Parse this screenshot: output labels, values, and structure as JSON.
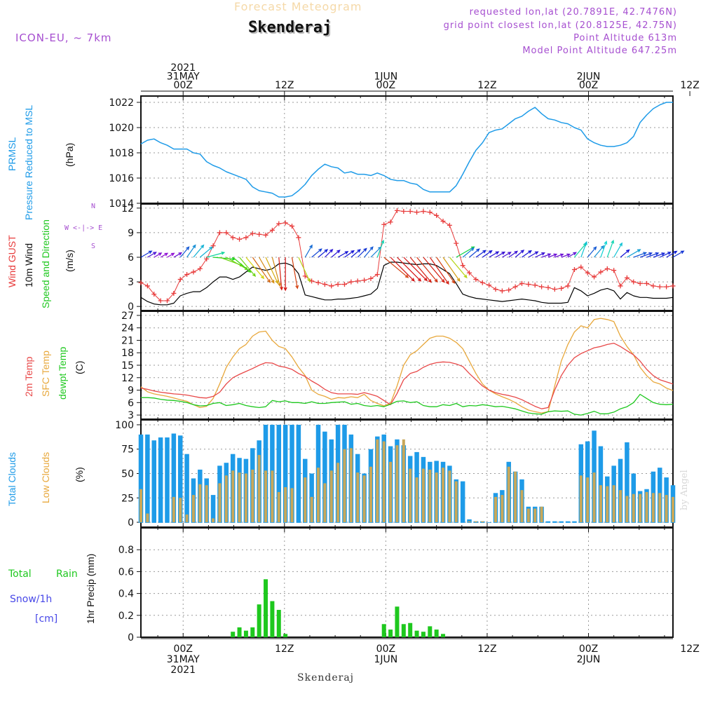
{
  "header": {
    "title": "Forecast Meteogram",
    "station": "Skenderaj",
    "model": "ICON-EU, ~ 7km",
    "requested": "requested lon,lat (20.7891E, 42.7476N)",
    "gridpoint": "grid point closest lon,lat (20.8125E, 42.75N)",
    "point_alt": "Point Altitude 613m",
    "model_alt": "Model Point Altitude 647.25m"
  },
  "time_axis": {
    "top_labels": [
      {
        "hour": 0,
        "lines": [
          "2021",
          "31MAY",
          "00Z"
        ]
      },
      {
        "hour": 12,
        "lines": [
          "12Z"
        ]
      },
      {
        "hour": 24,
        "lines": [
          "1JUN",
          "00Z"
        ]
      },
      {
        "hour": 36,
        "lines": [
          "12Z"
        ]
      },
      {
        "hour": 48,
        "lines": [
          "2JUN",
          "00Z"
        ]
      },
      {
        "hour": 60,
        "lines": [
          "12Z"
        ]
      }
    ],
    "bottom_labels": [
      {
        "hour": 0,
        "lines": [
          "00Z",
          "31MAY",
          "2021"
        ]
      },
      {
        "hour": 12,
        "lines": [
          "12Z"
        ]
      },
      {
        "hour": 24,
        "lines": [
          "00Z",
          "1JUN"
        ]
      },
      {
        "hour": 36,
        "lines": [
          "12Z"
        ]
      },
      {
        "hour": 48,
        "lines": [
          "00Z",
          "2JUN"
        ]
      },
      {
        "hour": 60,
        "lines": [
          "12Z"
        ]
      }
    ],
    "footer": "Skenderaj"
  },
  "panels": {
    "pressure": {
      "l1": "PRMSL",
      "l2": "Pressure Reduced to MSL",
      "unit": "(hPa)"
    },
    "wind": {
      "l1": "Wind GUST",
      "l2": "10m Wind",
      "l3": "Speed and Direction",
      "unit": "(m/s)",
      "compass_n": "N",
      "compass_ew": "W <-|-> E",
      "compass_s": "S"
    },
    "temp": {
      "l1": "2m Temp",
      "l2": "SFC Temp",
      "l3": "dewpt Temp",
      "unit": "(C)"
    },
    "clouds": {
      "l1": "Total Clouds",
      "l2": "Low Clouds",
      "unit": "(%)"
    },
    "precip": {
      "l1": "Total",
      "l1b": "Rain",
      "l2": "Snow/1h",
      "l3": "[cm]",
      "unit": "1hr Precip (mm)"
    }
  },
  "credit": "by Angel",
  "colors": {
    "pressure": "#1e9be8",
    "gust": "#e83c3c",
    "wind": "#000000",
    "temp2m": "#e84848",
    "sfc": "#e8a83c",
    "dewpt": "#1ec81e",
    "total_cloud": "#1e9be8",
    "low_cloud": "#c8a85a",
    "rain": "#1ec81e",
    "snow": "#4848e8",
    "label_green": "#1ec81e",
    "label_purple": "#a64fd0"
  },
  "chart_data": [
    {
      "type": "line",
      "title": "PRMSL",
      "ylabel": "(hPa)",
      "ylim": [
        1014,
        1022.5
      ],
      "yticks": [
        1014,
        1016,
        1018,
        1020,
        1022
      ],
      "x_hours_start": -5,
      "x_hours_end": 58,
      "grid": true,
      "series": [
        {
          "name": "PRMSL",
          "values": [
            1018.7,
            1019.0,
            1019.1,
            1018.8,
            1018.6,
            1018.3,
            1018.3,
            1018.3,
            1018.0,
            1017.9,
            1017.3,
            1017.0,
            1016.8,
            1016.5,
            1016.3,
            1016.1,
            1015.9,
            1015.3,
            1015.0,
            1014.9,
            1014.8,
            1014.5,
            1014.5,
            1014.6,
            1015.0,
            1015.5,
            1016.2,
            1016.7,
            1017.1,
            1016.9,
            1016.8,
            1016.4,
            1016.5,
            1016.3,
            1016.3,
            1016.2,
            1016.4,
            1016.2,
            1015.9,
            1015.8,
            1015.8,
            1015.6,
            1015.5,
            1015.1,
            1014.9,
            1014.9,
            1014.9,
            1014.9,
            1015.4,
            1016.3,
            1017.3,
            1018.2,
            1018.8,
            1019.6,
            1019.8,
            1019.9,
            1020.3,
            1020.7,
            1020.9,
            1021.3,
            1021.6,
            1021.1,
            1020.7,
            1020.6,
            1020.4,
            1020.3,
            1020.0,
            1019.8,
            1019.1,
            1018.8,
            1018.6,
            1018.5,
            1018.5,
            1018.6,
            1018.8,
            1019.3,
            1020.4,
            1021.0,
            1021.5,
            1021.8,
            1022.0,
            1022.0
          ]
        }
      ]
    },
    {
      "type": "line",
      "title": "Wind GUST / 10m Wind",
      "ylabel": "(m/s)",
      "ylim": [
        -0.5,
        12.5
      ],
      "yticks": [
        0,
        3,
        6,
        9,
        12
      ],
      "grid": true,
      "series": [
        {
          "name": "Wind GUST",
          "values": [
            2.9,
            2.5,
            1.5,
            0.7,
            0.7,
            1.6,
            3.3,
            3.9,
            4.2,
            4.6,
            5.8,
            7.4,
            9.0,
            9.0,
            8.4,
            8.2,
            8.4,
            8.9,
            8.8,
            8.7,
            9.3,
            10.1,
            10.2,
            9.8,
            8.4,
            3.7,
            3.1,
            2.9,
            2.7,
            2.5,
            2.7,
            2.7,
            3.0,
            3.1,
            3.2,
            3.4,
            3.9,
            10.0,
            10.3,
            11.7,
            11.6,
            11.6,
            11.5,
            11.6,
            11.5,
            11.1,
            10.4,
            9.9,
            7.7,
            5.0,
            4.1,
            3.3,
            2.9,
            2.6,
            2.1,
            1.9,
            2.0,
            2.4,
            2.8,
            2.7,
            2.6,
            2.4,
            2.3,
            2.1,
            2.2,
            2.5,
            4.5,
            4.8,
            4.1,
            3.6,
            4.2,
            4.6,
            4.4,
            2.5,
            3.5,
            3.0,
            2.8,
            2.8,
            2.5,
            2.4,
            2.4,
            2.5
          ]
        },
        {
          "name": "10m Wind",
          "values": [
            1.1,
            0.6,
            0.3,
            0.2,
            0.2,
            0.4,
            1.3,
            1.6,
            1.8,
            1.8,
            2.3,
            3.0,
            3.6,
            3.6,
            3.3,
            3.6,
            4.2,
            4.8,
            4.6,
            4.4,
            4.6,
            5.2,
            5.3,
            5.0,
            4.0,
            1.4,
            1.2,
            1.0,
            0.8,
            0.8,
            0.9,
            0.9,
            1.0,
            1.1,
            1.3,
            1.5,
            2.2,
            5.0,
            5.4,
            5.4,
            5.3,
            5.2,
            5.1,
            5.2,
            5.2,
            5.0,
            4.5,
            4.0,
            2.8,
            1.5,
            1.2,
            1.0,
            0.9,
            0.8,
            0.7,
            0.6,
            0.7,
            0.8,
            0.9,
            0.8,
            0.7,
            0.5,
            0.4,
            0.4,
            0.4,
            0.5,
            2.3,
            1.9,
            1.3,
            1.6,
            2.0,
            2.2,
            1.9,
            0.9,
            1.7,
            1.3,
            1.1,
            1.1,
            1.0,
            1.0,
            1.0,
            1.1
          ]
        }
      ],
      "wind_direction_deg": [
        240,
        240,
        240,
        240,
        240,
        240,
        220,
        215,
        220,
        230,
        255,
        275,
        290,
        300,
        310,
        320,
        320,
        325,
        330,
        335,
        345,
        355,
        360,
        350,
        335,
        210,
        230,
        230,
        225,
        230,
        240,
        235,
        230,
        225,
        220,
        225,
        200,
        310,
        315,
        315,
        315,
        320,
        320,
        320,
        325,
        325,
        325,
        320,
        240,
        230,
        230,
        235,
        235,
        240,
        240,
        240,
        235,
        230,
        235,
        240,
        245,
        250,
        250,
        250,
        250,
        240,
        220,
        200,
        220,
        220,
        200,
        200,
        210,
        230,
        240,
        250,
        250,
        250,
        250,
        245,
        240,
        240
      ]
    },
    {
      "type": "line",
      "title": "Temperature",
      "ylabel": "(C)",
      "ylim": [
        2,
        28
      ],
      "yticks": [
        3,
        6,
        9,
        12,
        15,
        18,
        21,
        24,
        27
      ],
      "grid": true,
      "series": [
        {
          "name": "2m Temp",
          "values": [
            9.5,
            9.2,
            8.8,
            8.5,
            8.3,
            8.1,
            8.0,
            7.8,
            7.5,
            7.2,
            7.1,
            7.5,
            8.5,
            10.5,
            12.0,
            12.8,
            13.5,
            14.2,
            15.0,
            15.6,
            15.5,
            14.8,
            14.5,
            14.0,
            13.0,
            12.3,
            11.2,
            10.3,
            9.2,
            8.4,
            8.1,
            8.1,
            8.1,
            8.0,
            8.4,
            8.0,
            7.5,
            6.5,
            5.5,
            8.2,
            11.5,
            13.0,
            13.5,
            14.5,
            15.2,
            15.6,
            15.8,
            15.7,
            15.3,
            14.7,
            13.0,
            11.5,
            10.0,
            9.0,
            8.4,
            8.0,
            7.7,
            7.3,
            6.7,
            5.9,
            5.1,
            4.5,
            4.8,
            9.0,
            12.5,
            15.0,
            16.8,
            17.8,
            18.5,
            19.2,
            19.5,
            20.0,
            20.3,
            19.5,
            18.5,
            17.5,
            16.0,
            14.0,
            12.5,
            11.5,
            11.0,
            10.5
          ]
        },
        {
          "name": "SFC Temp",
          "values": [
            9.8,
            8.6,
            8.1,
            7.8,
            7.5,
            7.1,
            6.7,
            6.3,
            5.5,
            4.8,
            5.1,
            7.0,
            10.5,
            14.5,
            17.0,
            19.0,
            20.0,
            22.0,
            23.0,
            23.2,
            21.0,
            19.5,
            19.0,
            17.0,
            14.5,
            12.5,
            9.0,
            8.0,
            7.5,
            6.8,
            7.2,
            7.1,
            7.4,
            7.2,
            8.0,
            6.5,
            5.8,
            5.2,
            5.8,
            10.0,
            15.0,
            17.5,
            18.5,
            20.0,
            21.5,
            22.0,
            22.0,
            21.5,
            20.5,
            19.0,
            16.0,
            13.0,
            10.5,
            9.0,
            8.1,
            7.4,
            6.8,
            6.0,
            5.0,
            4.2,
            3.8,
            3.5,
            3.8,
            10.0,
            16.0,
            20.0,
            23.0,
            24.5,
            24.0,
            26.0,
            26.3,
            26.0,
            25.5,
            22.0,
            19.5,
            17.5,
            14.5,
            12.5,
            11.0,
            10.5,
            9.5,
            8.9
          ]
        },
        {
          "name": "dewpt Temp",
          "values": [
            7.2,
            7.2,
            7.1,
            6.8,
            6.6,
            6.5,
            6.3,
            6.0,
            5.5,
            5.2,
            5.3,
            5.8,
            6.0,
            5.3,
            5.5,
            5.8,
            5.3,
            5.0,
            4.8,
            5.0,
            6.5,
            6.2,
            6.4,
            6.0,
            6.0,
            5.8,
            6.2,
            5.8,
            5.8,
            6.0,
            6.1,
            6.2,
            5.6,
            5.8,
            5.3,
            5.1,
            5.3,
            5.0,
            5.6,
            6.3,
            6.4,
            6.0,
            6.2,
            5.3,
            5.0,
            5.0,
            5.5,
            5.3,
            5.8,
            5.0,
            5.3,
            5.2,
            5.5,
            5.3,
            5.0,
            5.1,
            4.8,
            4.5,
            4.0,
            3.5,
            3.3,
            3.2,
            3.8,
            4.0,
            3.9,
            4.0,
            3.2,
            3.0,
            3.4,
            3.9,
            3.3,
            3.3,
            3.7,
            4.5,
            5.0,
            6.0,
            8.0,
            7.0,
            6.0,
            5.6,
            5.5,
            5.6
          ]
        }
      ]
    },
    {
      "type": "bar",
      "title": "Clouds",
      "ylabel": "(%)",
      "ylim": [
        -5,
        105
      ],
      "yticks": [
        0,
        25,
        50,
        75,
        100
      ],
      "grid": true,
      "series": [
        {
          "name": "Total Clouds",
          "values": [
            90,
            90,
            84,
            87,
            87,
            91,
            89,
            70,
            45,
            54,
            45,
            28,
            58,
            61,
            70,
            66,
            65,
            76,
            84,
            100,
            100,
            100,
            100,
            100,
            100,
            65,
            50,
            100,
            93,
            85,
            100,
            100,
            90,
            70,
            50,
            75,
            88,
            90,
            78,
            85,
            79,
            68,
            72,
            67,
            62,
            63,
            62,
            58,
            44,
            42,
            3,
            1,
            1,
            0,
            30,
            33,
            62,
            52,
            44,
            16,
            16,
            16,
            1,
            1,
            1,
            1,
            1,
            80,
            83,
            94,
            78,
            47,
            58,
            65,
            82,
            50,
            32,
            34,
            52,
            56,
            46,
            38
          ]
        },
        {
          "name": "Low Clouds",
          "values": [
            34,
            9,
            0,
            0,
            0,
            26,
            25,
            8,
            28,
            39,
            38,
            4,
            40,
            48,
            53,
            51,
            50,
            54,
            69,
            53,
            53,
            31,
            36,
            35,
            0,
            46,
            26,
            56,
            40,
            53,
            61,
            75,
            76,
            51,
            48,
            57,
            85,
            83,
            62,
            79,
            85,
            55,
            46,
            55,
            54,
            51,
            56,
            53,
            42,
            0,
            1,
            1,
            1,
            0,
            26,
            28,
            57,
            52,
            33,
            14,
            14,
            16,
            0,
            0,
            0,
            0,
            0,
            48,
            46,
            51,
            38,
            37,
            38,
            33,
            27,
            29,
            29,
            31,
            30,
            30,
            28,
            26
          ]
        }
      ]
    },
    {
      "type": "bar",
      "title": "1hr Precip",
      "ylabel": "1hr Precip (mm)",
      "ylim": [
        0,
        1.0
      ],
      "yticks": [
        0,
        0.2,
        0.4,
        0.6,
        0.8
      ],
      "grid": true,
      "series": [
        {
          "name": "Total Rain",
          "values": [
            0,
            0,
            0,
            0,
            0,
            0,
            0,
            0,
            0,
            0,
            0,
            0,
            0,
            0,
            0.05,
            0.09,
            0.06,
            0.09,
            0.3,
            0.53,
            0.33,
            0.25,
            0.03,
            0,
            0,
            0,
            0,
            0,
            0,
            0,
            0,
            0,
            0,
            0,
            0,
            0,
            0,
            0.12,
            0.07,
            0.28,
            0.12,
            0.13,
            0.06,
            0.05,
            0.1,
            0.07,
            0.03,
            0,
            0,
            0,
            0,
            0,
            0,
            0,
            0,
            0,
            0,
            0,
            0,
            0,
            0,
            0,
            0,
            0,
            0,
            0,
            0,
            0,
            0,
            0,
            0,
            0,
            0,
            0,
            0,
            0,
            0,
            0,
            0,
            0,
            0,
            0
          ]
        },
        {
          "name": "Snow/1h",
          "values": [
            0,
            0,
            0,
            0,
            0,
            0,
            0,
            0,
            0,
            0,
            0,
            0,
            0,
            0,
            0,
            0,
            0,
            0,
            0,
            0,
            0,
            0,
            0,
            0,
            0,
            0,
            0,
            0,
            0,
            0,
            0,
            0,
            0,
            0,
            0,
            0,
            0,
            0,
            0,
            0,
            0,
            0,
            0,
            0,
            0,
            0,
            0,
            0,
            0,
            0,
            0,
            0,
            0,
            0,
            0,
            0,
            0,
            0,
            0,
            0,
            0,
            0,
            0,
            0,
            0,
            0,
            0,
            0,
            0,
            0,
            0,
            0,
            0,
            0,
            0,
            0,
            0,
            0,
            0,
            0,
            0,
            0
          ]
        }
      ]
    }
  ]
}
